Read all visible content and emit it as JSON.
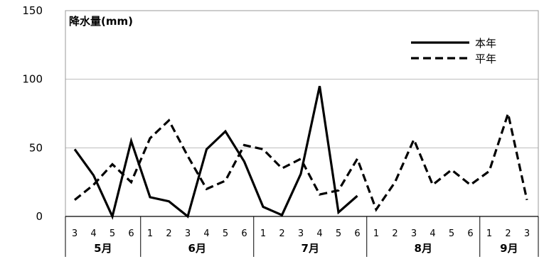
{
  "chart_data": {
    "type": "line",
    "ylabel": "降水量(mm)",
    "ylim": [
      0,
      150
    ],
    "yticks": [
      0,
      50,
      100,
      150
    ],
    "grid": true,
    "legend_position": "top-right",
    "x_tick_labels": [
      "3",
      "4",
      "5",
      "6",
      "1",
      "2",
      "3",
      "4",
      "5",
      "6",
      "1",
      "2",
      "3",
      "4",
      "5",
      "6",
      "1",
      "2",
      "3",
      "4",
      "5",
      "6",
      "1",
      "2",
      "3"
    ],
    "months": [
      {
        "label": "5月",
        "count": 4
      },
      {
        "label": "6月",
        "count": 6
      },
      {
        "label": "7月",
        "count": 6
      },
      {
        "label": "8月",
        "count": 6
      },
      {
        "label": "9月",
        "count": 3
      }
    ],
    "series": [
      {
        "name": "本年",
        "style": "solid",
        "color": "#000000",
        "values": [
          49,
          30,
          0,
          55,
          14,
          11,
          0,
          49,
          62,
          40,
          7,
          1,
          31,
          95,
          3,
          15,
          null,
          null,
          null,
          null,
          null,
          null,
          null,
          null,
          null
        ]
      },
      {
        "name": "平年",
        "style": "dashed",
        "color": "#000000",
        "values": [
          12,
          23,
          38,
          25,
          57,
          70,
          44,
          20,
          26,
          52,
          49,
          35,
          42,
          16,
          19,
          42,
          5,
          25,
          56,
          23,
          34,
          23,
          33,
          75,
          12
        ]
      }
    ]
  }
}
